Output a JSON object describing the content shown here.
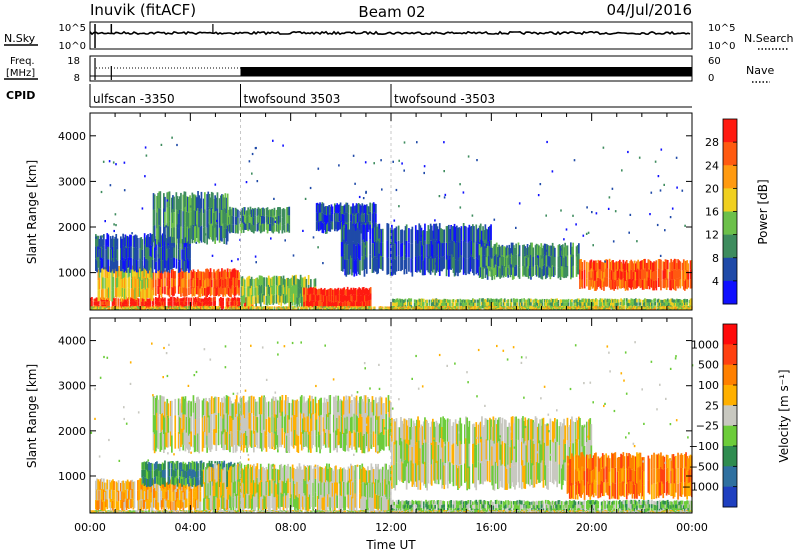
{
  "header": {
    "station": "Inuvik (fitACF)",
    "beam": "Beam 02",
    "date": "04/Jul/2016"
  },
  "noise_panel": {
    "left_label": "N.Sky",
    "right_label": "N.Search",
    "left_ticks": [
      "10^5",
      "10^0"
    ],
    "right_ticks": [
      "10^5",
      "10^0"
    ]
  },
  "freq_panel": {
    "left_label": "Freq.",
    "left_unit": "[MHz]",
    "right_label": "Nave",
    "left_ticks": [
      "18",
      "8"
    ],
    "right_ticks": [
      "60",
      "0"
    ]
  },
  "cpid": {
    "label": "CPID",
    "segments": [
      {
        "name": "ulfscan -3350",
        "start": 0,
        "end": 6
      },
      {
        "name": "twofsound 3503",
        "start": 6,
        "end": 12
      },
      {
        "name": "twofsound -3503",
        "start": 12,
        "end": 24
      }
    ]
  },
  "chart_data": [
    {
      "type": "heatmap",
      "panel": "power",
      "ylabel": "Slant Range [km]",
      "ylim": [
        180,
        4500
      ],
      "yticks": [
        1000,
        2000,
        3000,
        4000
      ],
      "xlim": [
        0,
        24
      ],
      "colorbar": {
        "label": "Power [dB]",
        "ticks": [
          "4",
          "8",
          "12",
          "16",
          "20",
          "24",
          "28"
        ],
        "colors": [
          "#1010ff",
          "#1f4aa8",
          "#3e8c5e",
          "#6cc04a",
          "#f0d020",
          "#ff9a10",
          "#ff5a10",
          "#ff1a10"
        ]
      },
      "bands": [
        {
          "t0": 0.0,
          "t1": 6.5,
          "r0": 200,
          "r1": 450,
          "level": 7
        },
        {
          "t0": 0.3,
          "t1": 2.5,
          "r0": 420,
          "r1": 1100,
          "level": 4
        },
        {
          "t0": 2.5,
          "t1": 6.0,
          "r0": 500,
          "r1": 1050,
          "level": 6
        },
        {
          "t0": 6.0,
          "t1": 9.0,
          "r0": 300,
          "r1": 900,
          "level": 3
        },
        {
          "t0": 8.5,
          "t1": 11.2,
          "r0": 230,
          "r1": 650,
          "level": 7
        },
        {
          "t0": 0.2,
          "t1": 4.0,
          "r0": 1050,
          "r1": 1800,
          "level": 1
        },
        {
          "t0": 2.5,
          "t1": 5.5,
          "r0": 1700,
          "r1": 2700,
          "level": 2
        },
        {
          "t0": 5.5,
          "t1": 8.0,
          "r0": 1900,
          "r1": 2400,
          "level": 2
        },
        {
          "t0": 9.0,
          "t1": 11.5,
          "r0": 1900,
          "r1": 2500,
          "level": 1
        },
        {
          "t0": 10.0,
          "t1": 16.0,
          "r0": 1000,
          "r1": 2000,
          "level": 1
        },
        {
          "t0": 15.5,
          "t1": 19.5,
          "r0": 900,
          "r1": 1600,
          "level": 2
        },
        {
          "t0": 19.5,
          "t1": 24.0,
          "r0": 650,
          "r1": 1250,
          "level": 6
        },
        {
          "t0": 12.0,
          "t1": 24.0,
          "r0": 200,
          "r1": 420,
          "level": 3
        },
        {
          "t0": 0.0,
          "t1": 24.0,
          "r0": 180,
          "r1": 260,
          "level": 4
        }
      ]
    },
    {
      "type": "heatmap",
      "panel": "velocity",
      "ylabel": "Slant Range [km]",
      "xlabel": "Time UT",
      "ylim": [
        180,
        4500
      ],
      "yticks": [
        1000,
        2000,
        3000,
        4000
      ],
      "xlim": [
        0,
        24
      ],
      "xticks": [
        "00:00",
        "04:00",
        "08:00",
        "12:00",
        "16:00",
        "20:00",
        "00:00"
      ],
      "colorbar": {
        "label": "Velocity [m s⁻¹]",
        "ticks": [
          "1000",
          "500",
          "100",
          "25",
          "−25",
          "−100",
          "−500",
          "−1000"
        ],
        "colors": [
          "#1f40c0",
          "#2f70a0",
          "#2f8c50",
          "#6ccc3a",
          "#c8c8c0",
          "#ffb000",
          "#ff8000",
          "#ff4010",
          "#ff0a0a"
        ]
      },
      "bands": [
        {
          "t0": 0.2,
          "t1": 5.5,
          "r0": 250,
          "r1": 900,
          "level": 5
        },
        {
          "t0": 2.0,
          "t1": 6.0,
          "r0": 800,
          "r1": 1300,
          "level": 2
        },
        {
          "t0": 4.5,
          "t1": 12.0,
          "r0": 230,
          "r1": 1200,
          "level": 4
        },
        {
          "t0": 2.5,
          "t1": 12.0,
          "r0": 1600,
          "r1": 2700,
          "level": 4
        },
        {
          "t0": 12.0,
          "t1": 20.0,
          "r0": 800,
          "r1": 2200,
          "level": 4
        },
        {
          "t0": 19.0,
          "t1": 24.0,
          "r0": 550,
          "r1": 1450,
          "level": 6
        },
        {
          "t0": 12.0,
          "t1": 24.0,
          "r0": 200,
          "r1": 450,
          "level": 3
        },
        {
          "t0": 0.0,
          "t1": 24.0,
          "r0": 180,
          "r1": 240,
          "level": 4
        }
      ]
    }
  ]
}
